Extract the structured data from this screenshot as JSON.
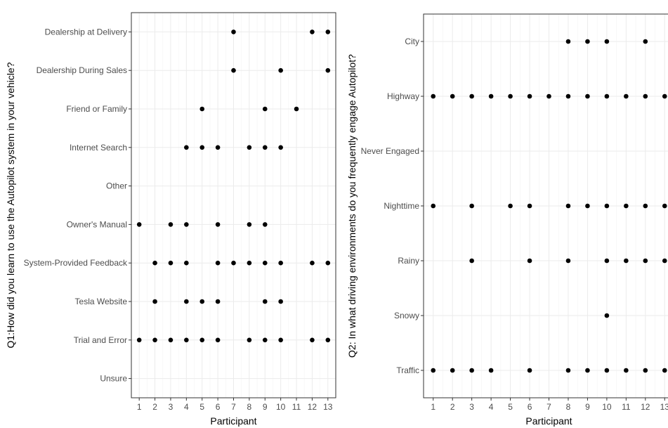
{
  "chart_data": [
    {
      "type": "scatter",
      "xlabel": "Participant",
      "ylabel": "Q1:How did you learn to use the Autopilot system in your vehicle?",
      "x_ticks": [
        1,
        2,
        3,
        4,
        5,
        6,
        7,
        8,
        9,
        10,
        11,
        12,
        13
      ],
      "xlim": [
        0.5,
        13.5
      ],
      "grid": true,
      "categories": [
        "Dealership at Delivery",
        "Dealership During Sales",
        "Friend or Family",
        "Internet Search",
        "Other",
        "Owner's Manual",
        "System-Provided Feedback",
        "Tesla Website",
        "Trial and Error",
        "Unsure"
      ],
      "points": {
        "Dealership at Delivery": [
          7,
          12,
          13
        ],
        "Dealership During Sales": [
          7,
          10,
          13
        ],
        "Friend or Family": [
          5,
          9,
          11
        ],
        "Internet Search": [
          4,
          5,
          6,
          8,
          9,
          10
        ],
        "Other": [],
        "Owner's Manual": [
          1,
          3,
          4,
          6,
          8,
          9
        ],
        "System-Provided Feedback": [
          2,
          3,
          4,
          6,
          7,
          8,
          9,
          10,
          12,
          13
        ],
        "Tesla Website": [
          2,
          4,
          5,
          6,
          9,
          10
        ],
        "Trial and Error": [
          1,
          2,
          3,
          4,
          5,
          6,
          8,
          9,
          10,
          12,
          13
        ],
        "Unsure": []
      }
    },
    {
      "type": "scatter",
      "xlabel": "Participant",
      "ylabel": "Q2: In what driving environments do you frequently engage Autopilot?",
      "x_ticks": [
        1,
        2,
        3,
        4,
        5,
        6,
        7,
        8,
        9,
        10,
        11,
        12,
        13
      ],
      "xlim": [
        0.5,
        13.5
      ],
      "grid": true,
      "categories": [
        "City",
        "Highway",
        "Never Engaged",
        "Nighttime",
        "Rainy",
        "Snowy",
        "Traffic"
      ],
      "points": {
        "City": [
          8,
          9,
          10,
          12
        ],
        "Highway": [
          1,
          2,
          3,
          4,
          5,
          6,
          7,
          8,
          9,
          10,
          11,
          12,
          13
        ],
        "Never Engaged": [],
        "Nighttime": [
          1,
          3,
          5,
          6,
          8,
          9,
          10,
          11,
          12,
          13
        ],
        "Rainy": [
          3,
          6,
          8,
          10,
          11,
          12,
          13
        ],
        "Snowy": [
          10
        ],
        "Traffic": [
          1,
          2,
          3,
          4,
          6,
          8,
          9,
          10,
          11,
          12,
          13
        ]
      }
    }
  ]
}
